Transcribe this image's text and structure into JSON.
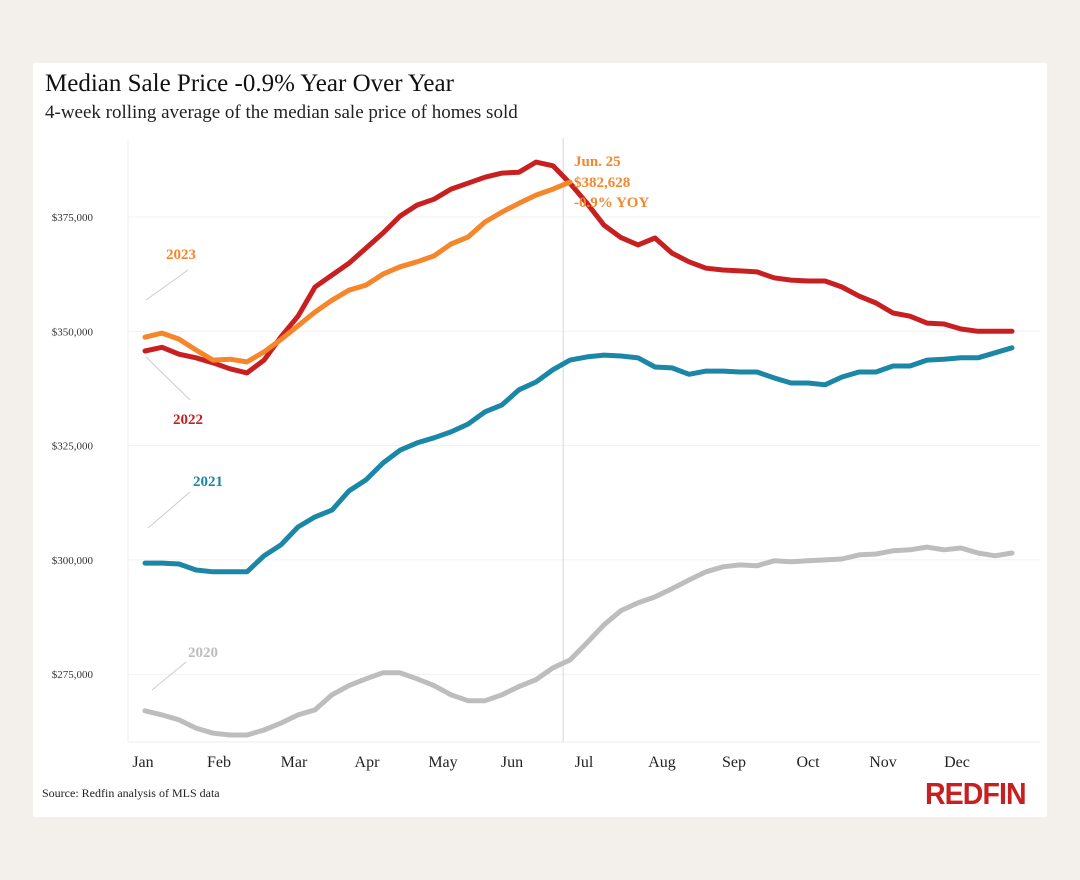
{
  "title": "Median Sale Price -0.9% Year Over Year",
  "subtitle": "4-week rolling average of the median sale price of homes sold",
  "source": "Source: Redfin analysis of MLS data",
  "logo": "REDFIN",
  "annotation": {
    "date": "Jun. 25",
    "value": "$382,628",
    "change": "-0.9% YOY",
    "color": "#f5862a"
  },
  "chart_data": {
    "type": "line",
    "title": "Median Sale Price -0.9% Year Over Year",
    "subtitle": "4-week rolling average of the median sale price of homes sold",
    "xlabel": "",
    "ylabel": "",
    "x_unit": "week of year",
    "x_ticks": [
      "Jan",
      "Feb",
      "Mar",
      "Apr",
      "May",
      "Jun",
      "Jul",
      "Aug",
      "Sep",
      "Oct",
      "Nov",
      "Dec"
    ],
    "y_ticks": [
      {
        "value": 275000,
        "label": "$275,000"
      },
      {
        "value": 300000,
        "label": "$300,000"
      },
      {
        "value": 325000,
        "label": "$325,000"
      },
      {
        "value": 350000,
        "label": "$350,000"
      },
      {
        "value": 375000,
        "label": "$375,000"
      }
    ],
    "ylim": [
      259000,
      392000
    ],
    "xlim": [
      0,
      52
    ],
    "grid": "horizontal",
    "series": [
      {
        "name": "2020",
        "color": "#bdbdbd",
        "values": [
          267000,
          266100,
          265000,
          263200,
          262100,
          261700,
          261700,
          262800,
          264300,
          266100,
          267200,
          270500,
          272500,
          274000,
          275300,
          275300,
          274000,
          272500,
          270500,
          269200,
          269200,
          270500,
          272300,
          273800,
          276400,
          278100,
          281900,
          285800,
          288900,
          290600,
          291900,
          293700,
          295600,
          297400,
          298500,
          298900,
          298700,
          299800,
          299600,
          299800,
          300000,
          300200,
          301100,
          301300,
          302000,
          302200,
          302800,
          302200,
          302600,
          301500,
          300900,
          301500
        ]
      },
      {
        "name": "2021",
        "color": "#1b87a6",
        "values": [
          299300,
          299300,
          299100,
          297800,
          297400,
          297400,
          297400,
          300900,
          303300,
          307200,
          309400,
          310900,
          315100,
          317500,
          321200,
          324000,
          325600,
          326700,
          328000,
          329700,
          332400,
          333900,
          337200,
          338900,
          341600,
          343700,
          344400,
          344800,
          344600,
          344200,
          342200,
          342000,
          340600,
          341300,
          341300,
          341100,
          341100,
          339800,
          338700,
          338700,
          338300,
          340000,
          341100,
          341100,
          342400,
          342400,
          343700,
          343900,
          344200,
          344200,
          345300,
          346400
        ]
      },
      {
        "name": "2022",
        "color": "#c82021",
        "values": [
          345700,
          346500,
          345000,
          344200,
          343100,
          341800,
          340900,
          343700,
          348800,
          353300,
          359700,
          362300,
          364900,
          368200,
          371500,
          375200,
          377600,
          378900,
          381100,
          382400,
          383700,
          384600,
          384800,
          387000,
          386200,
          382400,
          378000,
          373200,
          370500,
          368900,
          370400,
          367100,
          365200,
          363800,
          363400,
          363200,
          363000,
          361700,
          361200,
          361000,
          361000,
          359700,
          357700,
          356200,
          354000,
          353300,
          351800,
          351600,
          350500,
          350000,
          350000,
          350000
        ]
      },
      {
        "name": "2023",
        "color": "#f5862a",
        "values": [
          348700,
          349600,
          348300,
          345900,
          343700,
          343900,
          343300,
          345500,
          348200,
          351200,
          354200,
          356800,
          359000,
          360100,
          362500,
          364100,
          365200,
          366500,
          369100,
          370600,
          373900,
          376100,
          378000,
          379800,
          381100,
          382628
        ]
      }
    ],
    "annotations": [
      {
        "x_week": 24.6,
        "label": "Jun. 25",
        "value": "$382,628",
        "change": "-0.9% YOY"
      }
    ]
  }
}
